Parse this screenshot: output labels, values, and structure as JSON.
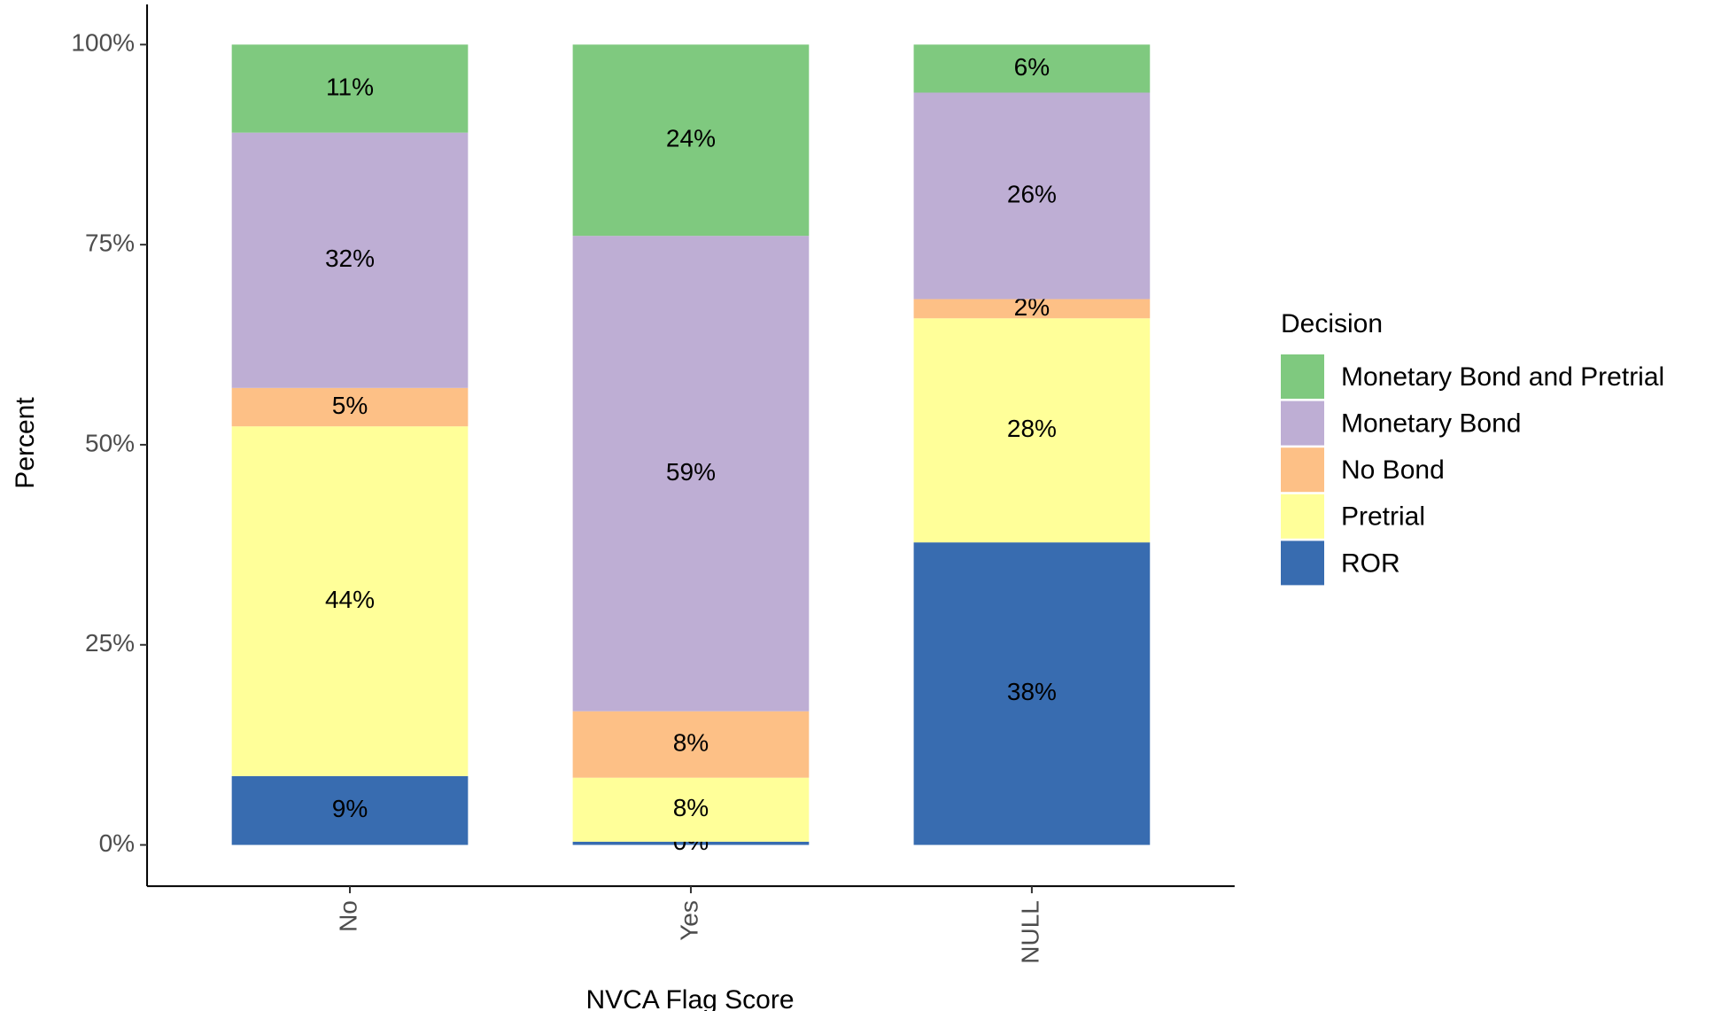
{
  "chart_data": {
    "type": "bar",
    "stacked": true,
    "x_label": "NVCA Flag Score",
    "y_label": "Percent",
    "legend_title": "Decision",
    "legend_position": "right",
    "categories": [
      "No",
      "Yes",
      "NULL"
    ],
    "ylim": [
      0,
      100
    ],
    "yticks": [
      {
        "value": 0,
        "label": "0%"
      },
      {
        "value": 25,
        "label": "25%"
      },
      {
        "value": 50,
        "label": "50%"
      },
      {
        "value": 75,
        "label": "75%"
      },
      {
        "value": 100,
        "label": "100%"
      }
    ],
    "series": [
      {
        "name": "Monetary Bond and Pretrial",
        "color": "#7fc97f",
        "values": [
          11.0,
          23.9,
          6.0
        ],
        "value_labels": [
          "11%",
          "24%",
          "6%"
        ]
      },
      {
        "name": "Monetary Bond",
        "color": "#beaed4",
        "values": [
          31.9,
          59.4,
          25.8
        ],
        "value_labels": [
          "32%",
          "59%",
          "26%"
        ]
      },
      {
        "name": "No Bond",
        "color": "#fdc086",
        "values": [
          4.8,
          8.3,
          2.4
        ],
        "value_labels": [
          "5%",
          "8%",
          "2%"
        ]
      },
      {
        "name": "Pretrial",
        "color": "#ffff99",
        "values": [
          43.7,
          8.0,
          28.0
        ],
        "value_labels": [
          "44%",
          "8%",
          "28%"
        ]
      },
      {
        "name": "ROR",
        "color": "#386cb0",
        "values": [
          8.6,
          0.4,
          37.8
        ],
        "value_labels": [
          "9%",
          "0%",
          "38%"
        ]
      }
    ]
  }
}
